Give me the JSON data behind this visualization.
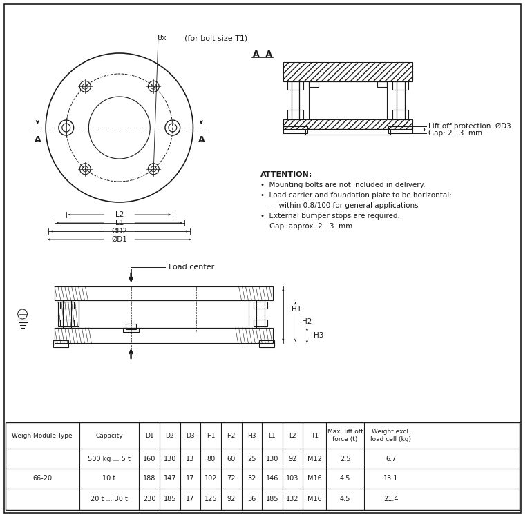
{
  "bg_color": "#ffffff",
  "line_color": "#1a1a1a",
  "table_headers": [
    "Weigh Module Type",
    "Capacity",
    "D1",
    "D2",
    "D3",
    "H1",
    "H2",
    "H3",
    "L1",
    "L2",
    "T1",
    "Max. lift off\nforce (t)",
    "Weight excl.\nload cell (kg)"
  ],
  "table_rows": [
    [
      "",
      "500 kg ... 5 t",
      "160",
      "130",
      "13",
      "80",
      "60",
      "25",
      "130",
      "92",
      "M12",
      "2.5",
      "6.7"
    ],
    [
      "66-20",
      "10 t",
      "188",
      "147",
      "17",
      "102",
      "72",
      "32",
      "146",
      "103",
      "M16",
      "4.5",
      "13.1"
    ],
    [
      "",
      "20 t ... 30 t",
      "230",
      "185",
      "17",
      "125",
      "92",
      "36",
      "185",
      "132",
      "M16",
      "4.5",
      "21.4"
    ]
  ],
  "attention_lines": [
    "ATTENTION:",
    "•  Mounting bolts are not included in delivery.",
    "•  Load carrier and foundation plate to be horizontal:",
    "    -   within 0.8/100 for general applications",
    "•  External bumper stops are required.",
    "    Gap  approx. 2...3  mm"
  ],
  "bolt_note_8x": "8x",
  "bolt_note_rest": "(for bolt size T1)",
  "section_label": "A  A",
  "lift_off_label": "Lift off protection  ØD3",
  "gap_label": "Gap: 2...3  mm",
  "load_center_label": "Load center"
}
